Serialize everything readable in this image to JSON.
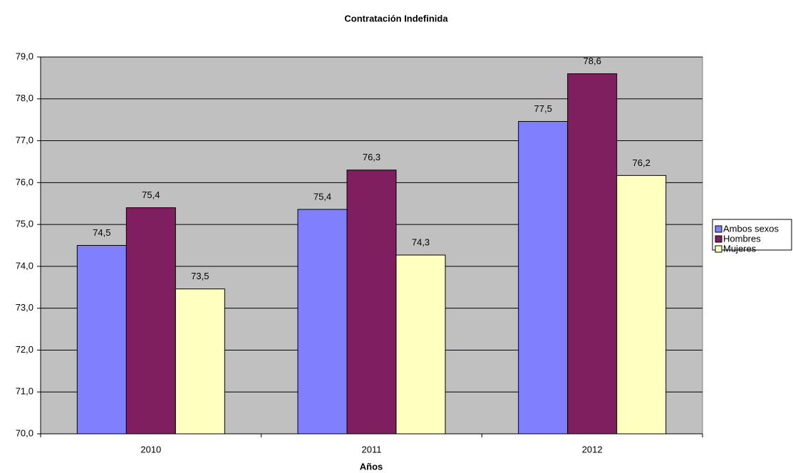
{
  "chart_data": {
    "type": "bar",
    "title": "Contratación Indefinida",
    "x_label": "Años",
    "categories": [
      "2010",
      "2011",
      "2012"
    ],
    "series": [
      {
        "name": "Ambos sexos",
        "color": "#8080ff",
        "values": [
          74.5,
          75.36,
          77.46
        ],
        "value_labels": [
          "74,5",
          "75,4",
          "77,5"
        ]
      },
      {
        "name": "Hombres",
        "color": "#801f5f",
        "values": [
          75.4,
          76.3,
          78.6
        ],
        "value_labels": [
          "75,4",
          "76,3",
          "78,6"
        ]
      },
      {
        "name": "Mujeres",
        "color": "#ffffc0",
        "values": [
          73.46,
          74.27,
          76.17
        ],
        "value_labels": [
          "73,5",
          "74,3",
          "76,2"
        ]
      }
    ],
    "ylim": [
      70,
      79
    ],
    "yticks": [
      {
        "value": 70,
        "label": "70,0"
      },
      {
        "value": 71,
        "label": "71,0"
      },
      {
        "value": 72,
        "label": "72,0"
      },
      {
        "value": 73,
        "label": "73,0"
      },
      {
        "value": 74,
        "label": "74,0"
      },
      {
        "value": 75,
        "label": "75,0"
      },
      {
        "value": 76,
        "label": "76,0"
      },
      {
        "value": 77,
        "label": "77,0"
      },
      {
        "value": 78,
        "label": "78,0"
      },
      {
        "value": 79,
        "label": "79,0"
      }
    ],
    "grid": true,
    "plot_background": "#c0c0c0",
    "legend": "right"
  }
}
